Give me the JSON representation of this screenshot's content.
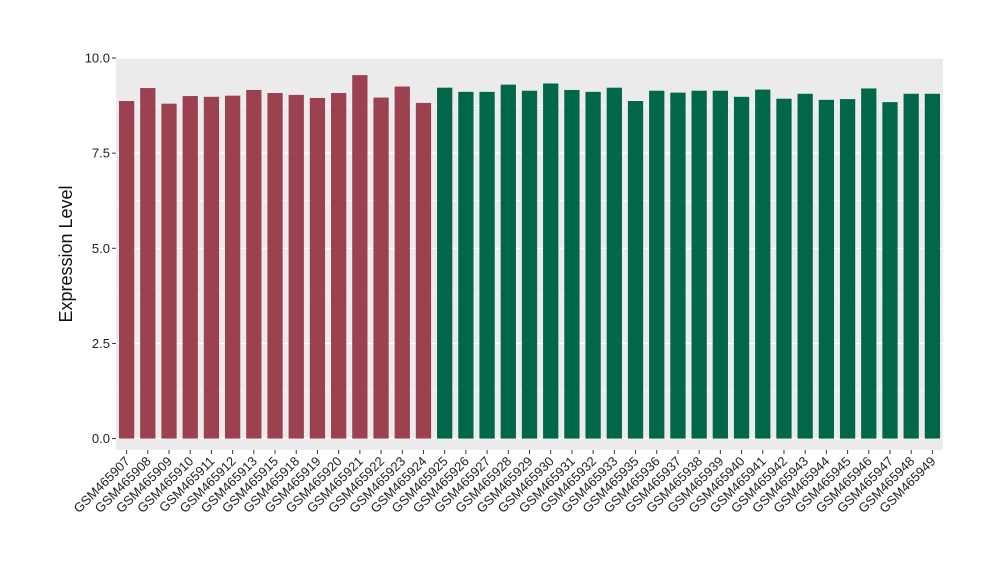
{
  "chart_data": {
    "type": "bar",
    "title": "",
    "xlabel": "",
    "ylabel": "Expression Level",
    "ylim": [
      -0.3,
      10.0
    ],
    "y_ticks": [
      "0.0",
      "2.5",
      "5.0",
      "7.5",
      "10.0"
    ],
    "y_tick_values": [
      0,
      2.5,
      5,
      7.5,
      10
    ],
    "grid": true,
    "legend": "none",
    "colors": {
      "group_a": "#9b4150",
      "group_b": "#00674a",
      "panel_bg": "#ebebeb",
      "grid": "#ffffff"
    },
    "categories": [
      "GSM465907",
      "GSM465908",
      "GSM465909",
      "GSM465910",
      "GSM465911",
      "GSM465912",
      "GSM465913",
      "GSM465915",
      "GSM465918",
      "GSM465919",
      "GSM465920",
      "GSM465921",
      "GSM465922",
      "GSM465923",
      "GSM465924",
      "GSM465925",
      "GSM465926",
      "GSM465927",
      "GSM465928",
      "GSM465929",
      "GSM465930",
      "GSM465931",
      "GSM465932",
      "GSM465933",
      "GSM465935",
      "GSM465936",
      "GSM465937",
      "GSM465938",
      "GSM465939",
      "GSM465940",
      "GSM465941",
      "GSM465942",
      "GSM465943",
      "GSM465944",
      "GSM465945",
      "GSM465946",
      "GSM465947",
      "GSM465948",
      "GSM465949"
    ],
    "values": [
      8.87,
      9.21,
      8.8,
      9.0,
      8.98,
      9.01,
      9.16,
      9.08,
      9.03,
      8.95,
      9.08,
      9.55,
      8.96,
      9.25,
      8.82,
      9.22,
      9.11,
      9.11,
      9.3,
      9.14,
      9.33,
      9.16,
      9.11,
      9.22,
      8.87,
      9.14,
      9.09,
      9.14,
      9.14,
      8.98,
      9.17,
      8.93,
      9.06,
      8.9,
      8.92,
      9.2,
      8.84,
      9.06,
      9.06
    ],
    "groups": [
      "a",
      "a",
      "a",
      "a",
      "a",
      "a",
      "a",
      "a",
      "a",
      "a",
      "a",
      "a",
      "a",
      "a",
      "a",
      "b",
      "b",
      "b",
      "b",
      "b",
      "b",
      "b",
      "b",
      "b",
      "b",
      "b",
      "b",
      "b",
      "b",
      "b",
      "b",
      "b",
      "b",
      "b",
      "b",
      "b",
      "b",
      "b",
      "b"
    ]
  }
}
